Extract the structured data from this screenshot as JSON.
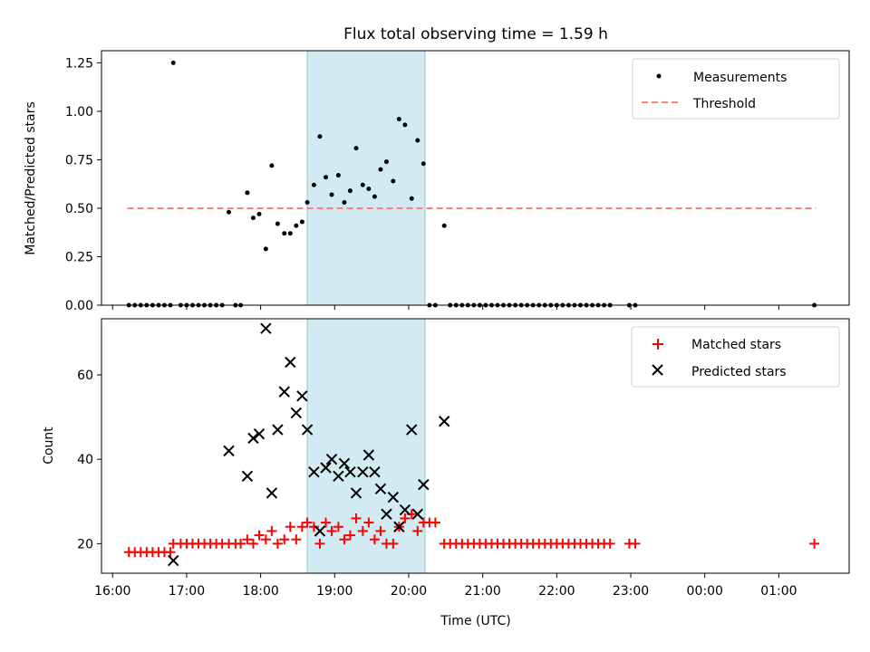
{
  "title": "Flux total observing time = 1.59 h",
  "colors": {
    "measurement": "#000000",
    "threshold": "#ff7f7f",
    "shade": "#add8e6",
    "matched": "#ff0000",
    "predicted": "#000000"
  },
  "chart_data": [
    {
      "type": "scatter",
      "position": "top",
      "ylabel": "Matched/Predicted stars",
      "ylim": [
        0,
        1.3125
      ],
      "yticks": [
        0,
        0.25,
        0.5,
        0.75,
        1.0,
        1.25
      ],
      "ytick_labels": [
        "0.00",
        "0.25",
        "0.50",
        "0.75",
        "1.00",
        "1.25"
      ],
      "xlim_hours": [
        15.85,
        25.95
      ],
      "shaded_span_hours": [
        18.63,
        20.22
      ],
      "legend": {
        "placement": "top-right",
        "items": [
          "Measurements",
          "Threshold"
        ]
      },
      "threshold": {
        "name": "Threshold",
        "y": 0.5,
        "x_range_hours": [
          16.2,
          25.5
        ]
      },
      "series": [
        {
          "name": "Measurements",
          "marker": "dot",
          "points": [
            [
              16.22,
              0
            ],
            [
              16.3,
              0
            ],
            [
              16.38,
              0
            ],
            [
              16.46,
              0
            ],
            [
              16.54,
              0
            ],
            [
              16.62,
              0
            ],
            [
              16.7,
              0
            ],
            [
              16.78,
              0
            ],
            [
              16.82,
              1.25
            ],
            [
              16.92,
              0
            ],
            [
              17.0,
              0
            ],
            [
              17.08,
              0
            ],
            [
              17.16,
              0
            ],
            [
              17.24,
              0
            ],
            [
              17.32,
              0
            ],
            [
              17.4,
              0
            ],
            [
              17.48,
              0
            ],
            [
              17.57,
              0.48
            ],
            [
              17.66,
              0
            ],
            [
              17.73,
              0
            ],
            [
              17.82,
              0.58
            ],
            [
              17.9,
              0.45
            ],
            [
              17.98,
              0.47
            ],
            [
              18.07,
              0.29
            ],
            [
              18.15,
              0.72
            ],
            [
              18.23,
              0.42
            ],
            [
              18.32,
              0.37
            ],
            [
              18.4,
              0.37
            ],
            [
              18.48,
              0.41
            ],
            [
              18.56,
              0.43
            ],
            [
              18.63,
              0.53
            ],
            [
              18.72,
              0.62
            ],
            [
              18.8,
              0.87
            ],
            [
              18.88,
              0.66
            ],
            [
              18.96,
              0.57
            ],
            [
              19.05,
              0.67
            ],
            [
              19.13,
              0.53
            ],
            [
              19.21,
              0.59
            ],
            [
              19.29,
              0.81
            ],
            [
              19.38,
              0.62
            ],
            [
              19.46,
              0.6
            ],
            [
              19.54,
              0.56
            ],
            [
              19.62,
              0.7
            ],
            [
              19.7,
              0.74
            ],
            [
              19.79,
              0.64
            ],
            [
              19.87,
              0.96
            ],
            [
              19.95,
              0.93
            ],
            [
              20.04,
              0.55
            ],
            [
              20.12,
              0.85
            ],
            [
              20.2,
              0.73
            ],
            [
              20.28,
              0
            ],
            [
              20.36,
              0
            ],
            [
              20.48,
              0.41
            ],
            [
              20.56,
              0
            ],
            [
              20.64,
              0
            ],
            [
              20.72,
              0
            ],
            [
              20.8,
              0
            ],
            [
              20.88,
              0
            ],
            [
              20.96,
              0
            ],
            [
              21.04,
              0
            ],
            [
              21.12,
              0
            ],
            [
              21.2,
              0
            ],
            [
              21.28,
              0
            ],
            [
              21.36,
              0
            ],
            [
              21.44,
              0
            ],
            [
              21.52,
              0
            ],
            [
              21.6,
              0
            ],
            [
              21.68,
              0
            ],
            [
              21.76,
              0
            ],
            [
              21.84,
              0
            ],
            [
              21.92,
              0
            ],
            [
              22.0,
              0
            ],
            [
              22.08,
              0
            ],
            [
              22.16,
              0
            ],
            [
              22.24,
              0
            ],
            [
              22.32,
              0
            ],
            [
              22.4,
              0
            ],
            [
              22.48,
              0
            ],
            [
              22.56,
              0
            ],
            [
              22.64,
              0
            ],
            [
              22.72,
              0
            ],
            [
              22.98,
              0
            ],
            [
              23.06,
              0
            ],
            [
              25.48,
              0
            ]
          ]
        }
      ]
    },
    {
      "type": "scatter",
      "position": "bottom",
      "xlabel": "Time (UTC)",
      "ylabel": "Count",
      "ylim": [
        13,
        73.3
      ],
      "yticks": [
        20,
        40,
        60
      ],
      "ytick_labels": [
        "20",
        "40",
        "60"
      ],
      "xlim_hours": [
        15.85,
        25.95
      ],
      "xticks_hours": [
        16,
        17,
        18,
        19,
        20,
        21,
        22,
        23,
        24,
        25
      ],
      "xtick_labels": [
        "16:00",
        "17:00",
        "18:00",
        "19:00",
        "20:00",
        "21:00",
        "22:00",
        "23:00",
        "00:00",
        "01:00"
      ],
      "shaded_span_hours": [
        18.63,
        20.22
      ],
      "legend": {
        "placement": "top-right",
        "items": [
          "Matched stars",
          "Predicted stars"
        ]
      },
      "series": [
        {
          "name": "Matched stars",
          "marker": "plus",
          "points": [
            [
              16.22,
              18
            ],
            [
              16.3,
              18
            ],
            [
              16.38,
              18
            ],
            [
              16.46,
              18
            ],
            [
              16.54,
              18
            ],
            [
              16.62,
              18
            ],
            [
              16.7,
              18
            ],
            [
              16.78,
              18
            ],
            [
              16.82,
              20
            ],
            [
              16.92,
              20
            ],
            [
              17.0,
              20
            ],
            [
              17.08,
              20
            ],
            [
              17.16,
              20
            ],
            [
              17.24,
              20
            ],
            [
              17.32,
              20
            ],
            [
              17.4,
              20
            ],
            [
              17.48,
              20
            ],
            [
              17.57,
              20
            ],
            [
              17.66,
              20
            ],
            [
              17.73,
              20
            ],
            [
              17.82,
              21
            ],
            [
              17.9,
              20
            ],
            [
              17.98,
              22
            ],
            [
              18.07,
              21
            ],
            [
              18.15,
              23
            ],
            [
              18.23,
              20
            ],
            [
              18.32,
              21
            ],
            [
              18.4,
              24
            ],
            [
              18.48,
              21
            ],
            [
              18.56,
              24
            ],
            [
              18.63,
              25
            ],
            [
              18.72,
              24
            ],
            [
              18.8,
              20
            ],
            [
              18.88,
              25
            ],
            [
              18.96,
              23
            ],
            [
              19.05,
              24
            ],
            [
              19.13,
              21
            ],
            [
              19.21,
              22
            ],
            [
              19.29,
              26
            ],
            [
              19.38,
              23
            ],
            [
              19.46,
              25
            ],
            [
              19.54,
              21
            ],
            [
              19.62,
              23
            ],
            [
              19.7,
              20
            ],
            [
              19.79,
              20
            ],
            [
              19.87,
              24
            ],
            [
              19.95,
              26
            ],
            [
              20.04,
              27
            ],
            [
              20.12,
              23
            ],
            [
              20.2,
              25
            ],
            [
              20.28,
              25
            ],
            [
              20.36,
              25
            ],
            [
              20.48,
              20
            ],
            [
              20.56,
              20
            ],
            [
              20.64,
              20
            ],
            [
              20.72,
              20
            ],
            [
              20.8,
              20
            ],
            [
              20.88,
              20
            ],
            [
              20.96,
              20
            ],
            [
              21.04,
              20
            ],
            [
              21.12,
              20
            ],
            [
              21.2,
              20
            ],
            [
              21.28,
              20
            ],
            [
              21.36,
              20
            ],
            [
              21.44,
              20
            ],
            [
              21.52,
              20
            ],
            [
              21.6,
              20
            ],
            [
              21.68,
              20
            ],
            [
              21.76,
              20
            ],
            [
              21.84,
              20
            ],
            [
              21.92,
              20
            ],
            [
              22.0,
              20
            ],
            [
              22.08,
              20
            ],
            [
              22.16,
              20
            ],
            [
              22.24,
              20
            ],
            [
              22.32,
              20
            ],
            [
              22.4,
              20
            ],
            [
              22.48,
              20
            ],
            [
              22.56,
              20
            ],
            [
              22.64,
              20
            ],
            [
              22.72,
              20
            ],
            [
              22.98,
              20
            ],
            [
              23.06,
              20
            ],
            [
              25.48,
              20
            ]
          ]
        },
        {
          "name": "Predicted stars",
          "marker": "x",
          "points": [
            [
              16.82,
              16
            ],
            [
              17.57,
              42
            ],
            [
              17.82,
              36
            ],
            [
              17.9,
              45
            ],
            [
              17.98,
              46
            ],
            [
              18.07,
              71
            ],
            [
              18.15,
              32
            ],
            [
              18.23,
              47
            ],
            [
              18.32,
              56
            ],
            [
              18.4,
              63
            ],
            [
              18.48,
              51
            ],
            [
              18.56,
              55
            ],
            [
              18.63,
              47
            ],
            [
              18.72,
              37
            ],
            [
              18.8,
              23
            ],
            [
              18.88,
              38
            ],
            [
              18.96,
              40
            ],
            [
              19.05,
              36
            ],
            [
              19.13,
              39
            ],
            [
              19.21,
              37
            ],
            [
              19.29,
              32
            ],
            [
              19.38,
              37
            ],
            [
              19.46,
              41
            ],
            [
              19.54,
              37
            ],
            [
              19.62,
              33
            ],
            [
              19.7,
              27
            ],
            [
              19.79,
              31
            ],
            [
              19.87,
              24
            ],
            [
              19.95,
              28
            ],
            [
              20.04,
              47
            ],
            [
              20.12,
              27
            ],
            [
              20.2,
              34
            ],
            [
              20.48,
              49
            ]
          ]
        }
      ]
    }
  ]
}
